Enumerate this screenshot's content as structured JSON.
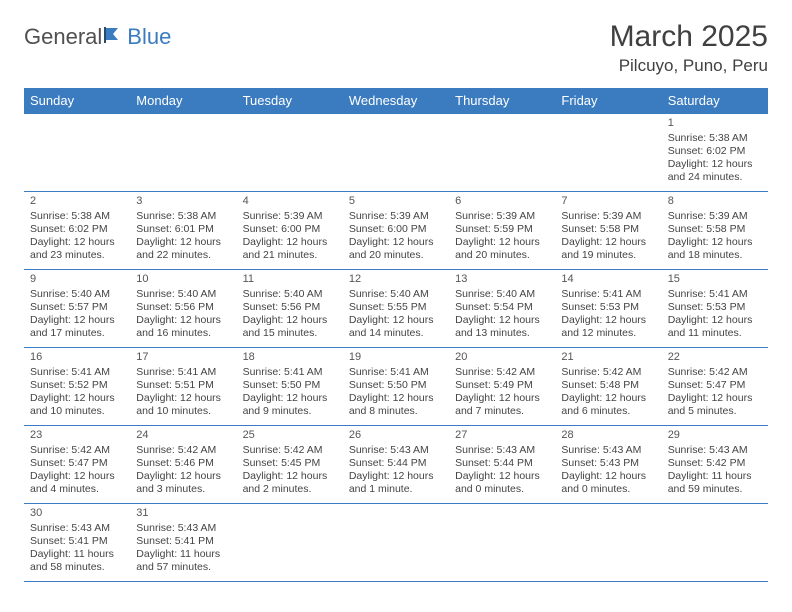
{
  "brand": {
    "part1": "General",
    "part2": "Blue"
  },
  "title": "March 2025",
  "location": "Pilcuyo, Puno, Peru",
  "colors": {
    "header_bg": "#3b7bbf",
    "header_text": "#ffffff",
    "cell_border": "#3b7bbf",
    "text": "#444444",
    "title_text": "#404040",
    "background": "#ffffff"
  },
  "typography": {
    "title_fontsize_pt": 22,
    "location_fontsize_pt": 13,
    "header_fontsize_pt": 10,
    "cell_fontsize_pt": 8
  },
  "layout": {
    "columns": 7,
    "rows": 6,
    "aspect": "792x612"
  },
  "day_headers": [
    "Sunday",
    "Monday",
    "Tuesday",
    "Wednesday",
    "Thursday",
    "Friday",
    "Saturday"
  ],
  "weeks": [
    [
      null,
      null,
      null,
      null,
      null,
      null,
      {
        "n": "1",
        "sr": "Sunrise: 5:38 AM",
        "ss": "Sunset: 6:02 PM",
        "dl": "Daylight: 12 hours and 24 minutes."
      }
    ],
    [
      {
        "n": "2",
        "sr": "Sunrise: 5:38 AM",
        "ss": "Sunset: 6:02 PM",
        "dl": "Daylight: 12 hours and 23 minutes."
      },
      {
        "n": "3",
        "sr": "Sunrise: 5:38 AM",
        "ss": "Sunset: 6:01 PM",
        "dl": "Daylight: 12 hours and 22 minutes."
      },
      {
        "n": "4",
        "sr": "Sunrise: 5:39 AM",
        "ss": "Sunset: 6:00 PM",
        "dl": "Daylight: 12 hours and 21 minutes."
      },
      {
        "n": "5",
        "sr": "Sunrise: 5:39 AM",
        "ss": "Sunset: 6:00 PM",
        "dl": "Daylight: 12 hours and 20 minutes."
      },
      {
        "n": "6",
        "sr": "Sunrise: 5:39 AM",
        "ss": "Sunset: 5:59 PM",
        "dl": "Daylight: 12 hours and 20 minutes."
      },
      {
        "n": "7",
        "sr": "Sunrise: 5:39 AM",
        "ss": "Sunset: 5:58 PM",
        "dl": "Daylight: 12 hours and 19 minutes."
      },
      {
        "n": "8",
        "sr": "Sunrise: 5:39 AM",
        "ss": "Sunset: 5:58 PM",
        "dl": "Daylight: 12 hours and 18 minutes."
      }
    ],
    [
      {
        "n": "9",
        "sr": "Sunrise: 5:40 AM",
        "ss": "Sunset: 5:57 PM",
        "dl": "Daylight: 12 hours and 17 minutes."
      },
      {
        "n": "10",
        "sr": "Sunrise: 5:40 AM",
        "ss": "Sunset: 5:56 PM",
        "dl": "Daylight: 12 hours and 16 minutes."
      },
      {
        "n": "11",
        "sr": "Sunrise: 5:40 AM",
        "ss": "Sunset: 5:56 PM",
        "dl": "Daylight: 12 hours and 15 minutes."
      },
      {
        "n": "12",
        "sr": "Sunrise: 5:40 AM",
        "ss": "Sunset: 5:55 PM",
        "dl": "Daylight: 12 hours and 14 minutes."
      },
      {
        "n": "13",
        "sr": "Sunrise: 5:40 AM",
        "ss": "Sunset: 5:54 PM",
        "dl": "Daylight: 12 hours and 13 minutes."
      },
      {
        "n": "14",
        "sr": "Sunrise: 5:41 AM",
        "ss": "Sunset: 5:53 PM",
        "dl": "Daylight: 12 hours and 12 minutes."
      },
      {
        "n": "15",
        "sr": "Sunrise: 5:41 AM",
        "ss": "Sunset: 5:53 PM",
        "dl": "Daylight: 12 hours and 11 minutes."
      }
    ],
    [
      {
        "n": "16",
        "sr": "Sunrise: 5:41 AM",
        "ss": "Sunset: 5:52 PM",
        "dl": "Daylight: 12 hours and 10 minutes."
      },
      {
        "n": "17",
        "sr": "Sunrise: 5:41 AM",
        "ss": "Sunset: 5:51 PM",
        "dl": "Daylight: 12 hours and 10 minutes."
      },
      {
        "n": "18",
        "sr": "Sunrise: 5:41 AM",
        "ss": "Sunset: 5:50 PM",
        "dl": "Daylight: 12 hours and 9 minutes."
      },
      {
        "n": "19",
        "sr": "Sunrise: 5:41 AM",
        "ss": "Sunset: 5:50 PM",
        "dl": "Daylight: 12 hours and 8 minutes."
      },
      {
        "n": "20",
        "sr": "Sunrise: 5:42 AM",
        "ss": "Sunset: 5:49 PM",
        "dl": "Daylight: 12 hours and 7 minutes."
      },
      {
        "n": "21",
        "sr": "Sunrise: 5:42 AM",
        "ss": "Sunset: 5:48 PM",
        "dl": "Daylight: 12 hours and 6 minutes."
      },
      {
        "n": "22",
        "sr": "Sunrise: 5:42 AM",
        "ss": "Sunset: 5:47 PM",
        "dl": "Daylight: 12 hours and 5 minutes."
      }
    ],
    [
      {
        "n": "23",
        "sr": "Sunrise: 5:42 AM",
        "ss": "Sunset: 5:47 PM",
        "dl": "Daylight: 12 hours and 4 minutes."
      },
      {
        "n": "24",
        "sr": "Sunrise: 5:42 AM",
        "ss": "Sunset: 5:46 PM",
        "dl": "Daylight: 12 hours and 3 minutes."
      },
      {
        "n": "25",
        "sr": "Sunrise: 5:42 AM",
        "ss": "Sunset: 5:45 PM",
        "dl": "Daylight: 12 hours and 2 minutes."
      },
      {
        "n": "26",
        "sr": "Sunrise: 5:43 AM",
        "ss": "Sunset: 5:44 PM",
        "dl": "Daylight: 12 hours and 1 minute."
      },
      {
        "n": "27",
        "sr": "Sunrise: 5:43 AM",
        "ss": "Sunset: 5:44 PM",
        "dl": "Daylight: 12 hours and 0 minutes."
      },
      {
        "n": "28",
        "sr": "Sunrise: 5:43 AM",
        "ss": "Sunset: 5:43 PM",
        "dl": "Daylight: 12 hours and 0 minutes."
      },
      {
        "n": "29",
        "sr": "Sunrise: 5:43 AM",
        "ss": "Sunset: 5:42 PM",
        "dl": "Daylight: 11 hours and 59 minutes."
      }
    ],
    [
      {
        "n": "30",
        "sr": "Sunrise: 5:43 AM",
        "ss": "Sunset: 5:41 PM",
        "dl": "Daylight: 11 hours and 58 minutes."
      },
      {
        "n": "31",
        "sr": "Sunrise: 5:43 AM",
        "ss": "Sunset: 5:41 PM",
        "dl": "Daylight: 11 hours and 57 minutes."
      },
      null,
      null,
      null,
      null,
      null
    ]
  ]
}
